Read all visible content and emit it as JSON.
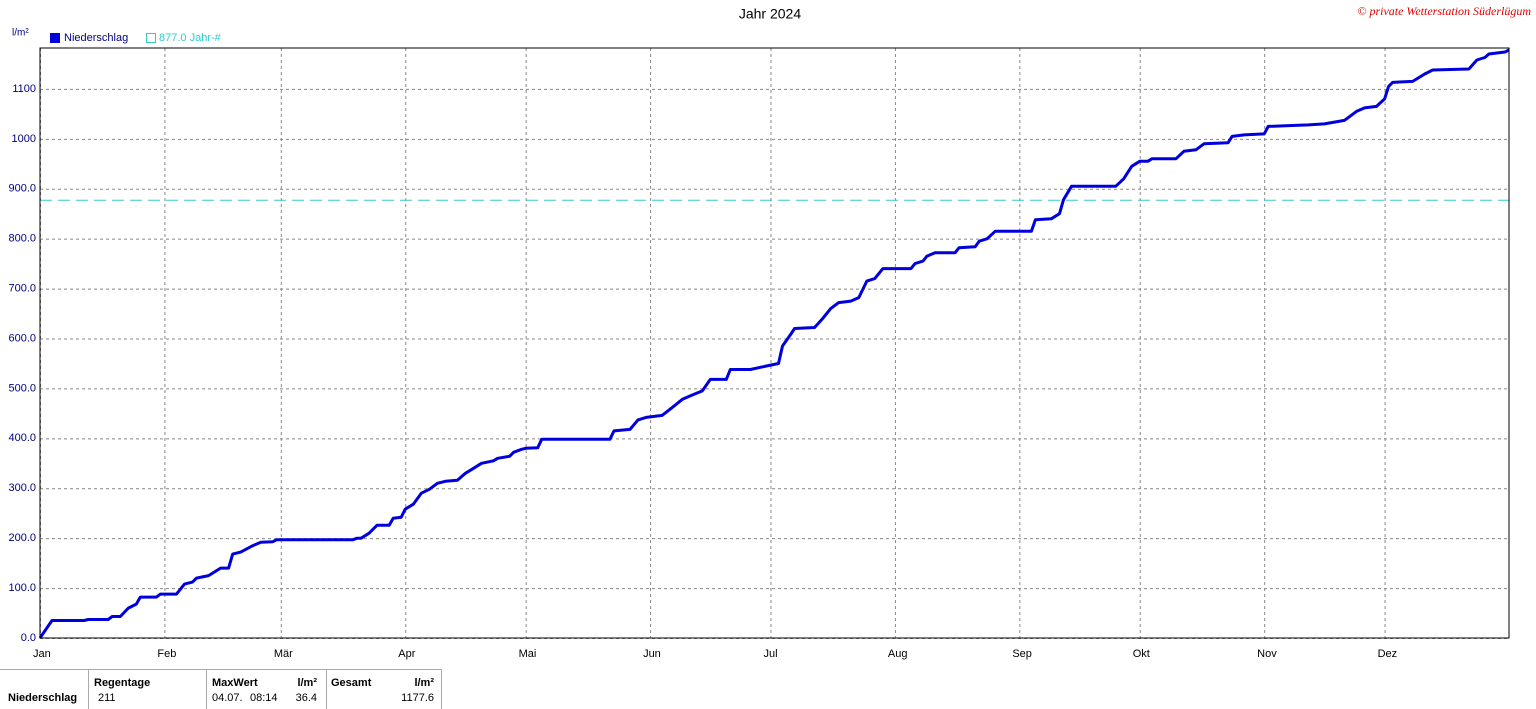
{
  "chart_data": {
    "type": "line",
    "title": "Jahr 2024",
    "copyright": "© private Wetterstation Süderlügum",
    "y_label": "l/m²",
    "xlim": [
      0,
      366
    ],
    "xticks": [
      {
        "value": 0,
        "label": "Jan"
      },
      {
        "value": 31,
        "label": "Feb"
      },
      {
        "value": 60,
        "label": "Mär"
      },
      {
        "value": 91,
        "label": "Apr"
      },
      {
        "value": 121,
        "label": "Mai"
      },
      {
        "value": 152,
        "label": "Jun"
      },
      {
        "value": 182,
        "label": "Jul"
      },
      {
        "value": 213,
        "label": "Aug"
      },
      {
        "value": 244,
        "label": "Sep"
      },
      {
        "value": 274,
        "label": "Okt"
      },
      {
        "value": 305,
        "label": "Nov"
      },
      {
        "value": 335,
        "label": "Dez"
      }
    ],
    "ylim": [
      0,
      1182
    ],
    "yticks": [
      {
        "value": 0,
        "label": "0.0"
      },
      {
        "value": 100,
        "label": "100.0"
      },
      {
        "value": 200,
        "label": "200.0"
      },
      {
        "value": 300,
        "label": "300.0"
      },
      {
        "value": 400,
        "label": "400.0"
      },
      {
        "value": 500,
        "label": "500.0"
      },
      {
        "value": 600,
        "label": "600.0"
      },
      {
        "value": 700,
        "label": "700.0"
      },
      {
        "value": 800,
        "label": "800.0"
      },
      {
        "value": 900,
        "label": "900.0"
      },
      1000,
      1100
    ],
    "grid": true,
    "reference_line": {
      "value": 877,
      "label": "877.0 Jahr-#",
      "color": "#33cccc"
    },
    "series": [
      {
        "name": "Niederschlag",
        "color": "#0000dd",
        "x": [
          0,
          3,
          11,
          12,
          17,
          18,
          20,
          22,
          24,
          25,
          29,
          30,
          34,
          36,
          38,
          39,
          42,
          43,
          45,
          47,
          48,
          50,
          53,
          55,
          58,
          59,
          78,
          79,
          80,
          82,
          83,
          84,
          87,
          88,
          90,
          91,
          93,
          95,
          97,
          99,
          101,
          104,
          106,
          108,
          110,
          113,
          114,
          117,
          118,
          120,
          121,
          124,
          125,
          142,
          143,
          147,
          149,
          151,
          155,
          158,
          160,
          162,
          165,
          167,
          171,
          172,
          177,
          181,
          184,
          185,
          187,
          188,
          193,
          195,
          197,
          199,
          202,
          204,
          206,
          208,
          210,
          217,
          218,
          220,
          221,
          223,
          228,
          229,
          233,
          234,
          236,
          238,
          247,
          248,
          252,
          254,
          255,
          257,
          268,
          270,
          272,
          274,
          276,
          277,
          283,
          285,
          288,
          290,
          296,
          297,
          300,
          305,
          306,
          316,
          320,
          325,
          328,
          330,
          333,
          335,
          336,
          337,
          342,
          345,
          347,
          356,
          358,
          360,
          361,
          365,
          366
        ],
        "values": [
          0,
          35,
          35,
          37,
          37,
          43,
          43,
          60,
          68,
          82,
          82,
          88,
          88,
          108,
          112,
          120,
          125,
          130,
          140,
          140,
          168,
          172,
          185,
          192,
          193,
          197,
          197,
          200,
          200,
          210,
          218,
          226,
          226,
          240,
          242,
          258,
          268,
          290,
          298,
          310,
          314,
          316,
          330,
          340,
          350,
          355,
          360,
          364,
          372,
          378,
          380,
          381,
          398,
          398,
          415,
          418,
          437,
          442,
          446,
          465,
          478,
          485,
          495,
          518,
          518,
          538,
          538,
          545,
          550,
          585,
          608,
          620,
          622,
          640,
          660,
          672,
          675,
          682,
          715,
          720,
          740,
          740,
          750,
          755,
          765,
          772,
          772,
          782,
          784,
          795,
          800,
          815,
          815,
          838,
          840,
          850,
          878,
          905,
          905,
          920,
          945,
          955,
          955,
          960,
          960,
          975,
          978,
          990,
          992,
          1005,
          1008,
          1010,
          1025,
          1028,
          1030,
          1037,
          1055,
          1062,
          1065,
          1080,
          1105,
          1113,
          1115,
          1130,
          1138,
          1140,
          1158,
          1163,
          1170,
          1174,
          1178
        ]
      }
    ],
    "summary": {
      "row_label": "Niederschlag",
      "headers": [
        "Regentage",
        "MaxWert",
        "l/m²",
        "Gesamt",
        "l/m²"
      ],
      "cells": [
        211,
        "04.07.",
        "08:14",
        36.4,
        1177.6
      ]
    }
  }
}
